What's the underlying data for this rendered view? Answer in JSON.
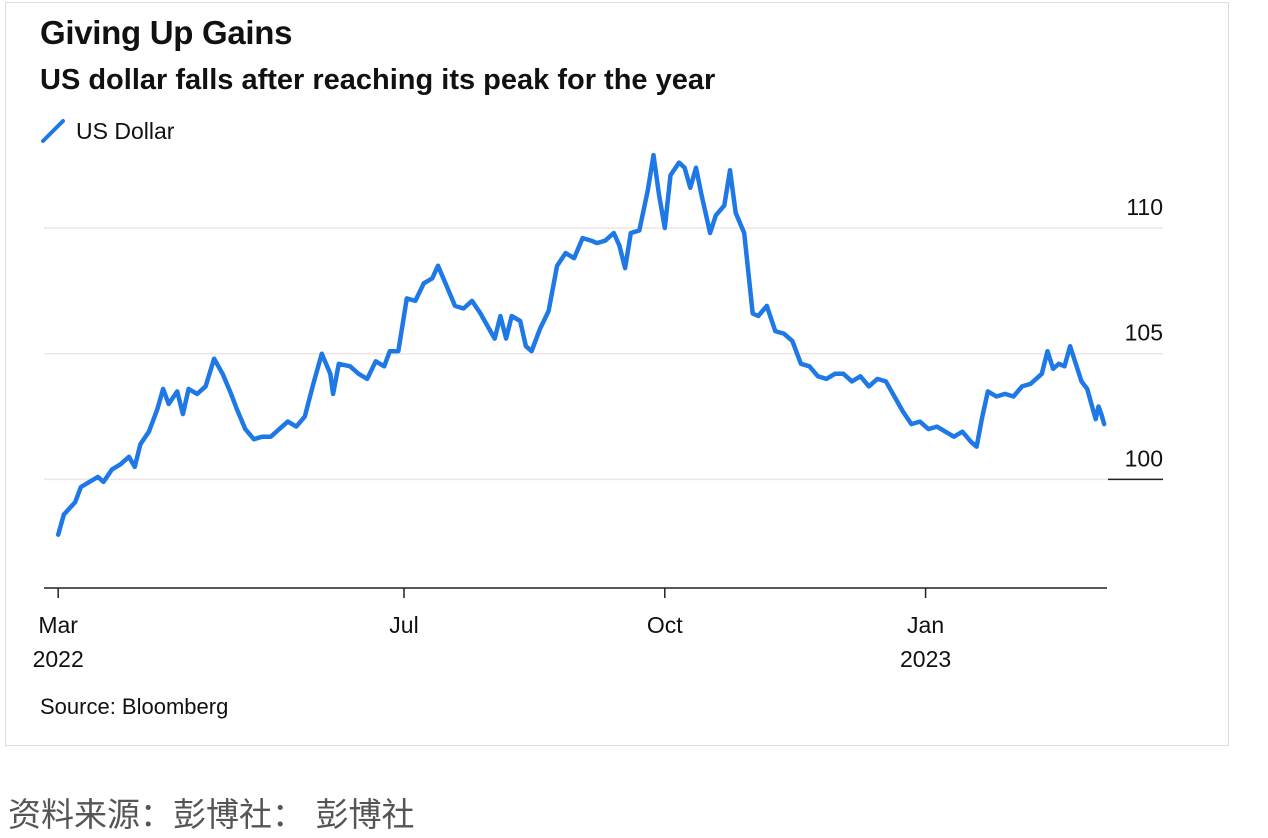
{
  "caption": "资料来源：彭博社： 彭博社",
  "source": "Source: Bloomberg",
  "colors": {
    "series": "#1e78e6",
    "axis": "#222222",
    "grid": "#f0e4e4",
    "text": "#111111"
  },
  "chart_data": {
    "type": "line",
    "title": "Giving Up Gains",
    "subtitle": "US dollar falls after reaching its peak for the year",
    "xlabel": "",
    "ylabel": "",
    "legend_position": "top-left",
    "grid": true,
    "x_range": [
      "2022-02-24",
      "2023-03-06"
    ],
    "ylim": [
      96,
      113.5
    ],
    "y_ticks": [
      {
        "value": 100,
        "label": "100"
      },
      {
        "value": 105,
        "label": "105"
      },
      {
        "value": 110,
        "label": "110"
      }
    ],
    "x_ticks": [
      {
        "date": "2022-03-01",
        "label": "Mar",
        "sublabel": "2022"
      },
      {
        "date": "2022-07-01",
        "label": "Jul",
        "sublabel": ""
      },
      {
        "date": "2022-10-01",
        "label": "Oct",
        "sublabel": ""
      },
      {
        "date": "2023-01-01",
        "label": "Jan",
        "sublabel": "2023"
      }
    ],
    "series": [
      {
        "name": "US Dollar",
        "points": [
          [
            "2022-03-01",
            97.8
          ],
          [
            "2022-03-03",
            98.6
          ],
          [
            "2022-03-07",
            99.1
          ],
          [
            "2022-03-09",
            99.7
          ],
          [
            "2022-03-12",
            99.9
          ],
          [
            "2022-03-15",
            100.1
          ],
          [
            "2022-03-17",
            99.9
          ],
          [
            "2022-03-20",
            100.4
          ],
          [
            "2022-03-23",
            100.6
          ],
          [
            "2022-03-26",
            100.9
          ],
          [
            "2022-03-28",
            100.5
          ],
          [
            "2022-03-30",
            101.4
          ],
          [
            "2022-04-02",
            101.9
          ],
          [
            "2022-04-05",
            102.8
          ],
          [
            "2022-04-07",
            103.6
          ],
          [
            "2022-04-09",
            103.0
          ],
          [
            "2022-04-12",
            103.5
          ],
          [
            "2022-04-14",
            102.6
          ],
          [
            "2022-04-16",
            103.6
          ],
          [
            "2022-04-19",
            103.4
          ],
          [
            "2022-04-22",
            103.7
          ],
          [
            "2022-04-25",
            104.8
          ],
          [
            "2022-04-28",
            104.2
          ],
          [
            "2022-05-01",
            103.4
          ],
          [
            "2022-05-03",
            102.8
          ],
          [
            "2022-05-06",
            102.0
          ],
          [
            "2022-05-09",
            101.6
          ],
          [
            "2022-05-12",
            101.7
          ],
          [
            "2022-05-15",
            101.7
          ],
          [
            "2022-05-18",
            102.0
          ],
          [
            "2022-05-21",
            102.3
          ],
          [
            "2022-05-24",
            102.1
          ],
          [
            "2022-05-27",
            102.5
          ],
          [
            "2022-05-30",
            103.8
          ],
          [
            "2022-06-02",
            105.0
          ],
          [
            "2022-06-05",
            104.2
          ],
          [
            "2022-06-06",
            103.4
          ],
          [
            "2022-06-08",
            104.6
          ],
          [
            "2022-06-12",
            104.5
          ],
          [
            "2022-06-15",
            104.2
          ],
          [
            "2022-06-18",
            104.0
          ],
          [
            "2022-06-21",
            104.7
          ],
          [
            "2022-06-24",
            104.5
          ],
          [
            "2022-06-26",
            105.1
          ],
          [
            "2022-06-29",
            105.1
          ],
          [
            "2022-07-02",
            107.2
          ],
          [
            "2022-07-05",
            107.1
          ],
          [
            "2022-07-08",
            107.8
          ],
          [
            "2022-07-11",
            108.0
          ],
          [
            "2022-07-13",
            108.5
          ],
          [
            "2022-07-16",
            107.7
          ],
          [
            "2022-07-19",
            106.9
          ],
          [
            "2022-07-22",
            106.8
          ],
          [
            "2022-07-25",
            107.1
          ],
          [
            "2022-07-28",
            106.6
          ],
          [
            "2022-07-31",
            106.0
          ],
          [
            "2022-08-02",
            105.6
          ],
          [
            "2022-08-04",
            106.5
          ],
          [
            "2022-08-06",
            105.6
          ],
          [
            "2022-08-08",
            106.5
          ],
          [
            "2022-08-11",
            106.3
          ],
          [
            "2022-08-13",
            105.3
          ],
          [
            "2022-08-15",
            105.1
          ],
          [
            "2022-08-18",
            106.0
          ],
          [
            "2022-08-21",
            106.7
          ],
          [
            "2022-08-24",
            108.5
          ],
          [
            "2022-08-27",
            109.0
          ],
          [
            "2022-08-30",
            108.8
          ],
          [
            "2022-09-02",
            109.6
          ],
          [
            "2022-09-05",
            109.5
          ],
          [
            "2022-09-07",
            109.4
          ],
          [
            "2022-09-10",
            109.5
          ],
          [
            "2022-09-13",
            109.8
          ],
          [
            "2022-09-15",
            109.3
          ],
          [
            "2022-09-17",
            108.4
          ],
          [
            "2022-09-19",
            109.8
          ],
          [
            "2022-09-22",
            109.9
          ],
          [
            "2022-09-25",
            111.5
          ],
          [
            "2022-09-27",
            112.9
          ],
          [
            "2022-09-29",
            111.3
          ],
          [
            "2022-10-01",
            110.0
          ],
          [
            "2022-10-03",
            112.1
          ],
          [
            "2022-10-06",
            112.6
          ],
          [
            "2022-10-08",
            112.4
          ],
          [
            "2022-10-10",
            111.6
          ],
          [
            "2022-10-12",
            112.4
          ],
          [
            "2022-10-14",
            111.3
          ],
          [
            "2022-10-17",
            109.8
          ],
          [
            "2022-10-19",
            110.5
          ],
          [
            "2022-10-22",
            110.9
          ],
          [
            "2022-10-24",
            112.3
          ],
          [
            "2022-10-26",
            110.6
          ],
          [
            "2022-10-29",
            109.8
          ],
          [
            "2022-11-01",
            106.6
          ],
          [
            "2022-11-03",
            106.5
          ],
          [
            "2022-11-06",
            106.9
          ],
          [
            "2022-11-09",
            105.9
          ],
          [
            "2022-11-12",
            105.8
          ],
          [
            "2022-11-15",
            105.5
          ],
          [
            "2022-11-18",
            104.6
          ],
          [
            "2022-11-21",
            104.5
          ],
          [
            "2022-11-24",
            104.1
          ],
          [
            "2022-11-27",
            104.0
          ],
          [
            "2022-11-30",
            104.2
          ],
          [
            "2022-12-03",
            104.2
          ],
          [
            "2022-12-06",
            103.9
          ],
          [
            "2022-12-09",
            104.1
          ],
          [
            "2022-12-12",
            103.7
          ],
          [
            "2022-12-15",
            104.0
          ],
          [
            "2022-12-18",
            103.9
          ],
          [
            "2022-12-21",
            103.3
          ],
          [
            "2022-12-24",
            102.7
          ],
          [
            "2022-12-27",
            102.2
          ],
          [
            "2022-12-30",
            102.3
          ],
          [
            "2023-01-02",
            102.0
          ],
          [
            "2023-01-05",
            102.1
          ],
          [
            "2023-01-08",
            101.9
          ],
          [
            "2023-01-11",
            101.7
          ],
          [
            "2023-01-14",
            101.9
          ],
          [
            "2023-01-17",
            101.5
          ],
          [
            "2023-01-19",
            101.3
          ],
          [
            "2023-01-21",
            102.5
          ],
          [
            "2023-01-23",
            103.5
          ],
          [
            "2023-01-26",
            103.3
          ],
          [
            "2023-01-29",
            103.4
          ],
          [
            "2023-02-01",
            103.3
          ],
          [
            "2023-02-04",
            103.7
          ],
          [
            "2023-02-07",
            103.8
          ],
          [
            "2023-02-09",
            104.0
          ],
          [
            "2023-02-11",
            104.2
          ],
          [
            "2023-02-13",
            105.1
          ],
          [
            "2023-02-15",
            104.4
          ],
          [
            "2023-02-17",
            104.6
          ],
          [
            "2023-02-19",
            104.5
          ],
          [
            "2023-02-21",
            105.3
          ],
          [
            "2023-02-23",
            104.6
          ],
          [
            "2023-02-25",
            103.9
          ],
          [
            "2023-02-27",
            103.6
          ],
          [
            "2023-03-01",
            102.8
          ],
          [
            "2023-03-02",
            102.4
          ],
          [
            "2023-03-03",
            102.9
          ],
          [
            "2023-03-04",
            102.6
          ],
          [
            "2023-03-05",
            102.2
          ]
        ]
      }
    ]
  }
}
